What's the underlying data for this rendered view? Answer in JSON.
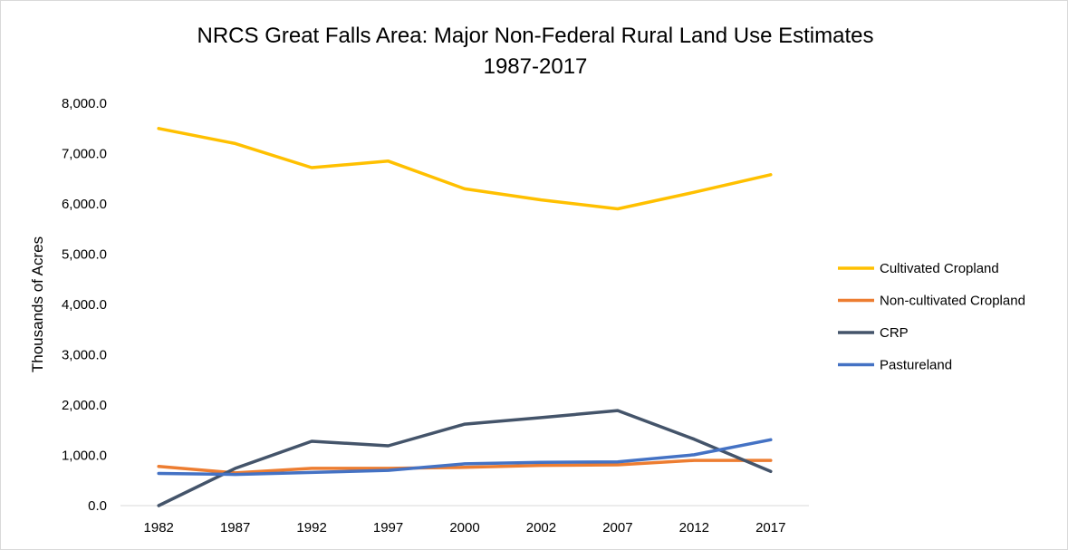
{
  "chart_data": {
    "type": "line",
    "title_line1": "NRCS Great Falls Area: Major Non-Federal Rural Land Use Estimates",
    "title_line2": "1987-2017",
    "ylabel": "Thousands of Acres",
    "xlabel": "",
    "categories": [
      "1982",
      "1987",
      "1992",
      "1997",
      "2000",
      "2002",
      "2007",
      "2012",
      "2017"
    ],
    "ylim": [
      0,
      8000
    ],
    "yticks": [
      0,
      1000,
      2000,
      3000,
      4000,
      5000,
      6000,
      7000,
      8000
    ],
    "ytick_labels": [
      "0.0",
      "1,000.0",
      "2,000.0",
      "3,000.0",
      "4,000.0",
      "5,000.0",
      "6,000.0",
      "7,000.0",
      "8,000.0"
    ],
    "grid": false,
    "legend_position": "right",
    "series": [
      {
        "name": "Cultivated Cropland",
        "color": "#FFC000",
        "values": [
          7500,
          7200,
          6720,
          6850,
          6300,
          6080,
          5900,
          6230,
          6580
        ]
      },
      {
        "name": "Non-cultivated Cropland",
        "color": "#ED7D31",
        "values": [
          780,
          650,
          740,
          740,
          760,
          800,
          810,
          900,
          900
        ]
      },
      {
        "name": "CRP",
        "color": "#44546A",
        "values": [
          0,
          740,
          1280,
          1190,
          1620,
          1750,
          1890,
          1320,
          680
        ]
      },
      {
        "name": "Pastureland",
        "color": "#4472C4",
        "values": [
          640,
          620,
          660,
          700,
          830,
          860,
          870,
          1010,
          1310
        ]
      }
    ]
  }
}
